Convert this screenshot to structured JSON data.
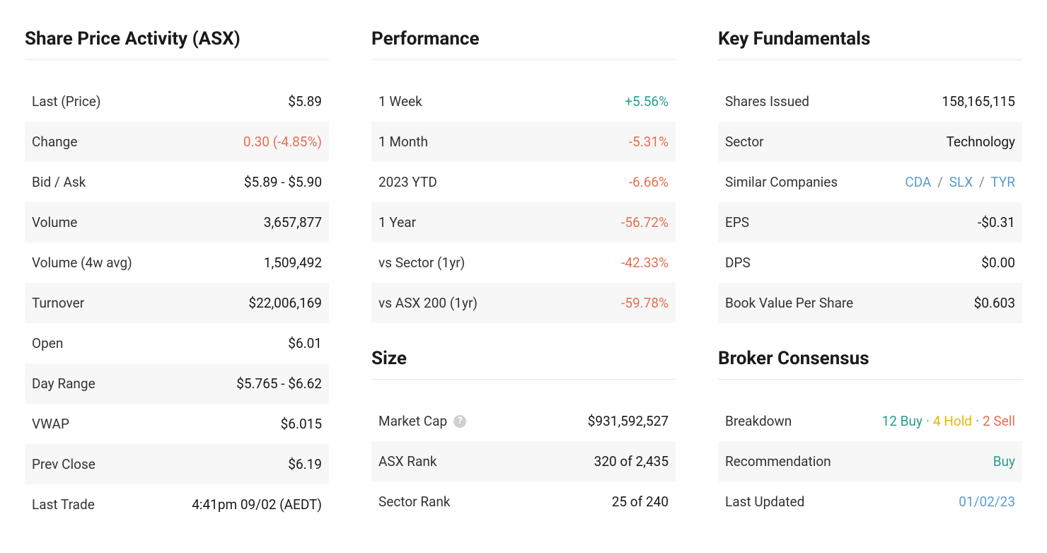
{
  "sharePriceActivity": {
    "title": "Share Price Activity (ASX)",
    "rows": [
      {
        "label": "Last (Price)",
        "value": "$5.89"
      },
      {
        "label": "Change",
        "value": "0.30 (-4.85%)",
        "negative": true
      },
      {
        "label": "Bid / Ask",
        "value": "$5.89 - $5.90"
      },
      {
        "label": "Volume",
        "value": "3,657,877"
      },
      {
        "label": "Volume (4w avg)",
        "value": "1,509,492"
      },
      {
        "label": "Turnover",
        "value": "$22,006,169"
      },
      {
        "label": "Open",
        "value": "$6.01"
      },
      {
        "label": "Day Range",
        "value": "$5.765 - $6.62"
      },
      {
        "label": "VWAP",
        "value": "$6.015"
      },
      {
        "label": "Prev Close",
        "value": "$6.19"
      },
      {
        "label": "Last Trade",
        "value": "4:41pm 09/02 (AEDT)"
      }
    ]
  },
  "performance": {
    "title": "Performance",
    "rows": [
      {
        "label": "1 Week",
        "value": "+5.56%",
        "positive": true
      },
      {
        "label": "1 Month",
        "value": "-5.31%",
        "negative": true
      },
      {
        "label": "2023 YTD",
        "value": "-6.66%",
        "negative": true
      },
      {
        "label": "1 Year",
        "value": "-56.72%",
        "negative": true
      },
      {
        "label": "vs Sector (1yr)",
        "value": "-42.33%",
        "negative": true
      },
      {
        "label": "vs ASX 200 (1yr)",
        "value": "-59.78%",
        "negative": true
      }
    ]
  },
  "size": {
    "title": "Size",
    "rows": [
      {
        "label": "Market Cap",
        "value": "$931,592,527",
        "helpIcon": true
      },
      {
        "label": "ASX Rank",
        "value": "320 of 2,435"
      },
      {
        "label": "Sector Rank",
        "value": "25 of 240"
      }
    ]
  },
  "keyFundamentals": {
    "title": "Key Fundamentals",
    "rows": [
      {
        "label": "Shares Issued",
        "value": "158,165,115"
      },
      {
        "label": "Sector",
        "value": "Technology"
      },
      {
        "label": "Similar Companies",
        "links": [
          "CDA",
          "SLX",
          "TYR"
        ]
      },
      {
        "label": "EPS",
        "value": "-$0.31"
      },
      {
        "label": "DPS",
        "value": "$0.00"
      },
      {
        "label": "Book Value Per Share",
        "value": "$0.603"
      }
    ]
  },
  "brokerConsensus": {
    "title": "Broker Consensus",
    "breakdownLabel": "Breakdown",
    "buyCount": "12 Buy",
    "holdCount": "4 Hold",
    "sellCount": "2 Sell",
    "recommendationLabel": "Recommendation",
    "recommendationValue": "Buy",
    "lastUpdatedLabel": "Last Updated",
    "lastUpdatedValue": "01/02/23"
  },
  "colors": {
    "positive": "#2a9d8f",
    "negative": "#e76f51",
    "link": "#5b9bd5",
    "hold": "#e6b800",
    "text": "#1a1a1a",
    "rowAlt": "#f7f7f7",
    "border": "#e5e5e5"
  }
}
